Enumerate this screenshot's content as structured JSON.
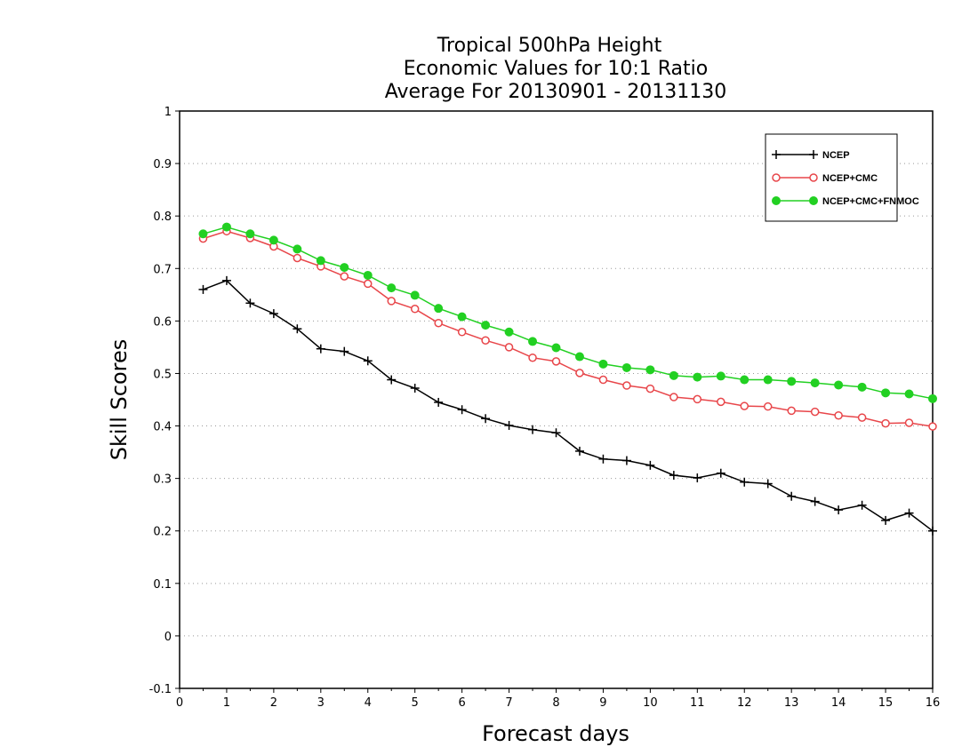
{
  "chart_data": {
    "type": "line",
    "title_lines": [
      "Tropical 500hPa Height",
      "Economic Values for 10:1 Ratio",
      "Average For 20130901 - 20131130"
    ],
    "xlabel": "Forecast days",
    "ylabel": "Skill Scores",
    "xlim": [
      0,
      16
    ],
    "ylim": [
      -0.1,
      1
    ],
    "x_ticks": [
      0,
      1,
      2,
      3,
      4,
      5,
      6,
      7,
      8,
      9,
      10,
      11,
      12,
      13,
      14,
      15,
      16
    ],
    "y_ticks": [
      -0.1,
      0,
      0.1,
      0.2,
      0.3,
      0.4,
      0.5,
      0.6,
      0.7,
      0.8,
      0.9,
      1
    ],
    "y_tick_labels": [
      "-0.1",
      "0",
      "0.1",
      "0.2",
      "0.3",
      "0.4",
      "0.5",
      "0.6",
      "0.7",
      "0.8",
      "0.9",
      "1"
    ],
    "grid": "y-dotted",
    "legend_position": "top-right",
    "x": [
      0.5,
      1,
      1.5,
      2,
      2.5,
      3,
      3.5,
      4,
      4.5,
      5,
      5.5,
      6,
      6.5,
      7,
      7.5,
      8,
      8.5,
      9,
      9.5,
      10,
      10.5,
      11,
      11.5,
      12,
      12.5,
      13,
      13.5,
      14,
      14.5,
      15,
      15.5,
      16
    ],
    "series": [
      {
        "name": "NCEP",
        "color": "#000000",
        "marker": "plus",
        "values": [
          0.66,
          0.677,
          0.634,
          0.614,
          0.585,
          0.547,
          0.542,
          0.524,
          0.488,
          0.472,
          0.445,
          0.431,
          0.414,
          0.401,
          0.393,
          0.387,
          0.352,
          0.337,
          0.334,
          0.325,
          0.306,
          0.301,
          0.31,
          0.293,
          0.29,
          0.266,
          0.256,
          0.24,
          0.249,
          0.22,
          0.234,
          0.2
        ]
      },
      {
        "name": "NCEP+CMC",
        "color": "#e8464a",
        "marker": "open-circle",
        "values": [
          0.757,
          0.771,
          0.758,
          0.742,
          0.72,
          0.704,
          0.685,
          0.671,
          0.638,
          0.623,
          0.596,
          0.579,
          0.563,
          0.55,
          0.53,
          0.523,
          0.501,
          0.488,
          0.477,
          0.471,
          0.455,
          0.451,
          0.446,
          0.438,
          0.437,
          0.429,
          0.427,
          0.42,
          0.416,
          0.405,
          0.406,
          0.399
        ]
      },
      {
        "name": "NCEP+CMC+FNMOC",
        "color": "#22d022",
        "marker": "filled-circle",
        "values": [
          0.766,
          0.779,
          0.766,
          0.754,
          0.737,
          0.715,
          0.702,
          0.687,
          0.663,
          0.649,
          0.624,
          0.608,
          0.592,
          0.579,
          0.561,
          0.549,
          0.532,
          0.518,
          0.511,
          0.507,
          0.496,
          0.493,
          0.495,
          0.488,
          0.488,
          0.485,
          0.482,
          0.478,
          0.474,
          0.463,
          0.461,
          0.452
        ]
      }
    ]
  }
}
